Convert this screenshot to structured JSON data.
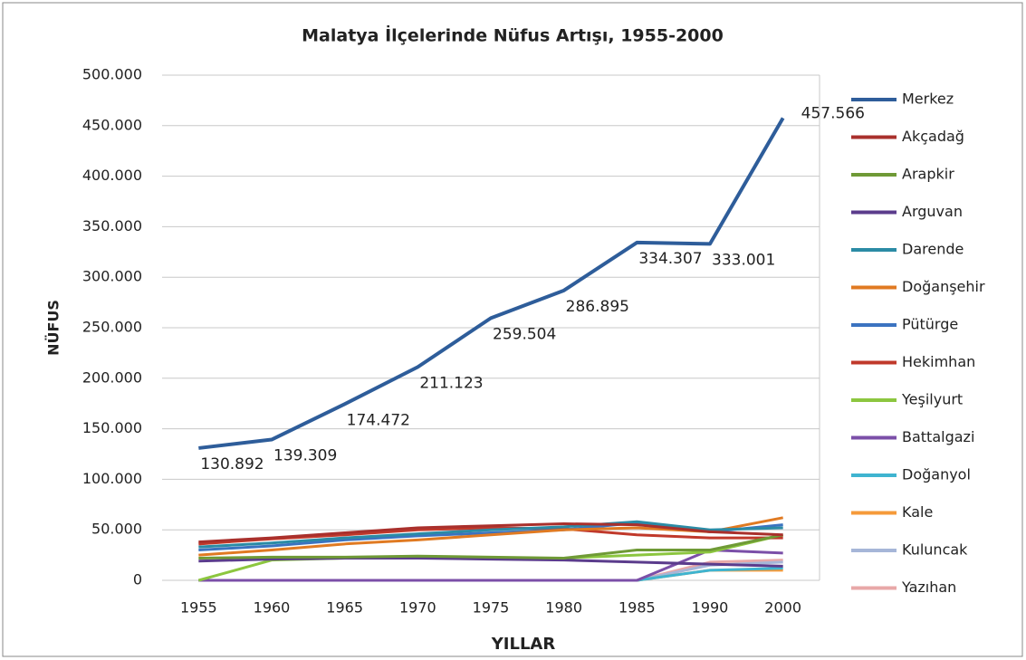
{
  "chart_data": {
    "type": "line",
    "title": "Malatya İlçelerinde Nüfus Artışı, 1955-2000",
    "x_label": "YILLAR",
    "y_label": "NÜFUS",
    "categories": [
      "1955",
      "1960",
      "1965",
      "1970",
      "1975",
      "1980",
      "1985",
      "1990",
      "2000"
    ],
    "ylim": [
      0,
      500000
    ],
    "yticks": [
      0,
      {
        "value": 50000,
        "label": "50.000"
      },
      {
        "value": 100000,
        "label": "100.000"
      },
      {
        "value": 150000,
        "label": "150.000"
      },
      {
        "value": 200000,
        "label": "200.000"
      },
      {
        "value": 250000,
        "label": "250.000"
      },
      {
        "value": 300000,
        "label": "300.000"
      },
      {
        "value": 350000,
        "label": "350.000"
      },
      {
        "value": 400000,
        "label": "400.000"
      },
      {
        "value": 450000,
        "label": "450.000"
      },
      {
        "value": 500000,
        "label": "500.000"
      }
    ],
    "grid": true,
    "legend": "right",
    "series": [
      {
        "name": "Merkez",
        "color": "#2e5d9a",
        "values": [
          130892,
          139309,
          174472,
          211123,
          259504,
          286895,
          334307,
          333001,
          457566
        ],
        "value_labels": [
          "130.892",
          "139.309",
          "174.472",
          "211.123",
          "259.504",
          "286.895",
          "334.307",
          "333.001",
          "457.566"
        ]
      },
      {
        "name": "Akçadağ",
        "color": "#a9302c",
        "values": [
          38000,
          42000,
          47000,
          52000,
          54000,
          56000,
          55000,
          48000,
          45000
        ]
      },
      {
        "name": "Arapkir",
        "color": "#6f9a36",
        "values": [
          22000,
          23000,
          23000,
          24000,
          23000,
          22000,
          30000,
          30000,
          45000
        ]
      },
      {
        "name": "Arguvan",
        "color": "#5b3c8c",
        "values": [
          19000,
          21000,
          22000,
          22000,
          21000,
          20000,
          18000,
          16000,
          14000
        ]
      },
      {
        "name": "Darende",
        "color": "#2b8ba5",
        "values": [
          33000,
          37000,
          42000,
          46000,
          50000,
          53000,
          58000,
          50000,
          52000
        ]
      },
      {
        "name": "Doğanşehir",
        "color": "#e07a22",
        "values": [
          25000,
          30000,
          36000,
          40000,
          45000,
          50000,
          52000,
          48000,
          62000
        ]
      },
      {
        "name": "Pütürge",
        "color": "#3b73c0",
        "values": [
          30000,
          34000,
          40000,
          44000,
          47000,
          50000,
          57000,
          48000,
          55000
        ]
      },
      {
        "name": "Hekimhan",
        "color": "#c0392b",
        "values": [
          36000,
          41000,
          45000,
          50000,
          52000,
          51000,
          45000,
          42000,
          42000
        ]
      },
      {
        "name": "Yeşilyurt",
        "color": "#8cc63f",
        "values": [
          0,
          20000,
          22000,
          23000,
          22000,
          22000,
          25000,
          28000,
          45000
        ]
      },
      {
        "name": "Battalgazi",
        "color": "#7b4fa8",
        "values": [
          0,
          0,
          0,
          0,
          0,
          0,
          0,
          30000,
          27000
        ]
      },
      {
        "name": "Doğanyol",
        "color": "#3fb4d0",
        "values": [
          0,
          0,
          0,
          0,
          0,
          0,
          0,
          10000,
          12000
        ]
      },
      {
        "name": "Kale",
        "color": "#f59a3a",
        "values": [
          0,
          0,
          0,
          0,
          0,
          0,
          0,
          10000,
          10000
        ]
      },
      {
        "name": "Kuluncak",
        "color": "#a6b6d8",
        "values": [
          0,
          0,
          0,
          0,
          0,
          0,
          0,
          15000,
          18000
        ]
      },
      {
        "name": "Yazıhan",
        "color": "#e8a8a8",
        "values": [
          0,
          0,
          0,
          0,
          0,
          0,
          0,
          18000,
          20000
        ]
      }
    ]
  }
}
